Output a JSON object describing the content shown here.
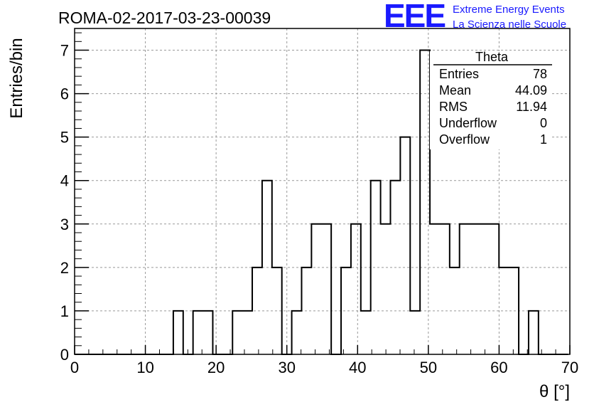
{
  "header": {
    "run_title": "ROMA-02-2017-03-23-00039",
    "logo_text": "EEE",
    "logo_line1": "Extreme Energy Events",
    "logo_line2": "La Scienza nelle Scuole"
  },
  "stats_box": {
    "title": "Theta",
    "rows": [
      {
        "label": "Entries",
        "value": "78"
      },
      {
        "label": "Mean",
        "value": "44.09"
      },
      {
        "label": "RMS",
        "value": "11.94"
      },
      {
        "label": "Underflow",
        "value": "0"
      },
      {
        "label": "Overflow",
        "value": "1"
      }
    ]
  },
  "colors": {
    "logo": "#1a1aff",
    "line": "#000000",
    "grid": "#999999"
  },
  "chart_data": {
    "type": "histogram",
    "xlabel": "θ [°]",
    "ylabel": "Entries/bin",
    "xlim": [
      0,
      70
    ],
    "ylim": [
      0,
      7.5
    ],
    "x_ticks": [
      0,
      10,
      20,
      30,
      40,
      50,
      60,
      70
    ],
    "y_ticks": [
      0,
      1,
      2,
      3,
      4,
      5,
      6,
      7
    ],
    "grid": true,
    "bin_width": 1.395,
    "bin_start": 0,
    "values": [
      0,
      0,
      0,
      0,
      0,
      0,
      0,
      0,
      0,
      0,
      1,
      0,
      1,
      1,
      0,
      0,
      1,
      1,
      2,
      4,
      2,
      0,
      1,
      2,
      3,
      3,
      0,
      2,
      3,
      1,
      4,
      3,
      4,
      5,
      1,
      7,
      3,
      3,
      2,
      3,
      3,
      3,
      3,
      2,
      2,
      0,
      1,
      0,
      0,
      0
    ]
  }
}
